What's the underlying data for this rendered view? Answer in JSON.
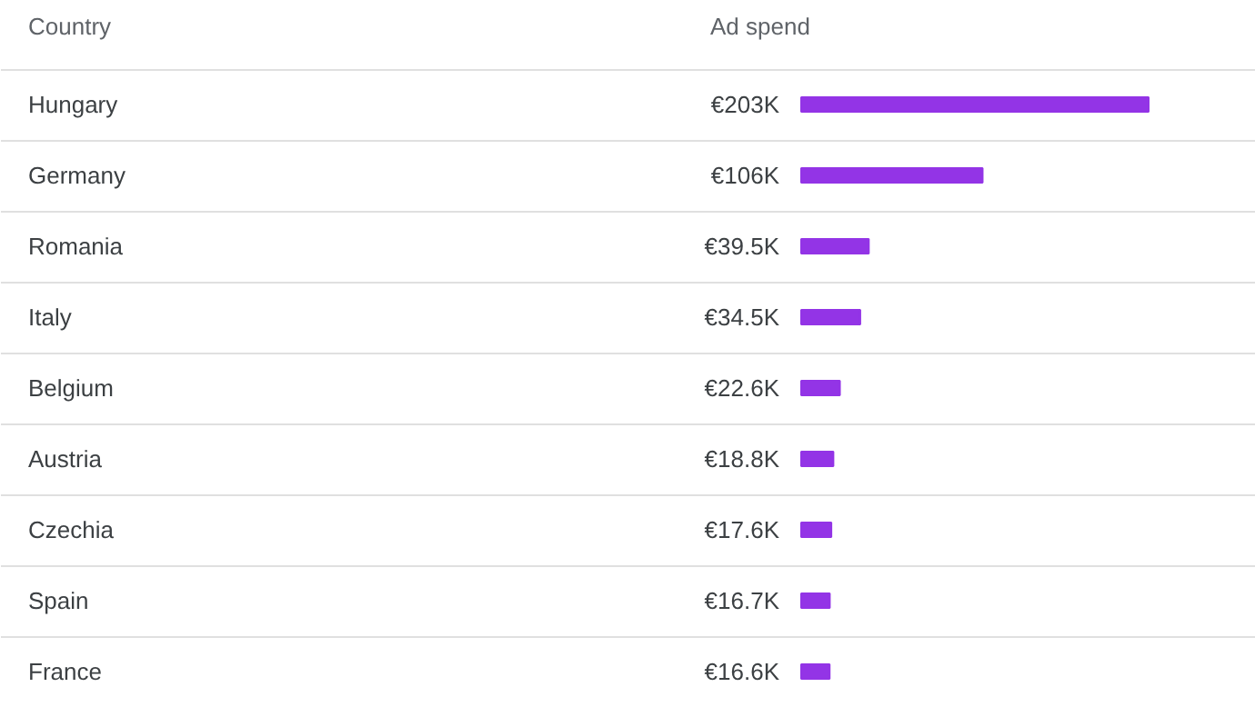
{
  "chart_data": {
    "type": "bar",
    "orientation": "horizontal",
    "xlabel": "Ad spend",
    "ylabel": "Country",
    "categories": [
      "Hungary",
      "Germany",
      "Romania",
      "Italy",
      "Belgium",
      "Austria",
      "Czechia",
      "Spain",
      "France"
    ],
    "values": [
      203,
      106,
      39.5,
      34.5,
      22.6,
      18.8,
      17.6,
      16.7,
      16.6
    ],
    "value_labels": [
      "€203K",
      "€106K",
      "€39.5K",
      "€34.5K",
      "€22.6K",
      "€18.8K",
      "€17.6K",
      "€16.7K",
      "€16.6K"
    ],
    "color": "#9334e6",
    "tick_labels": "y",
    "grid": false
  }
}
